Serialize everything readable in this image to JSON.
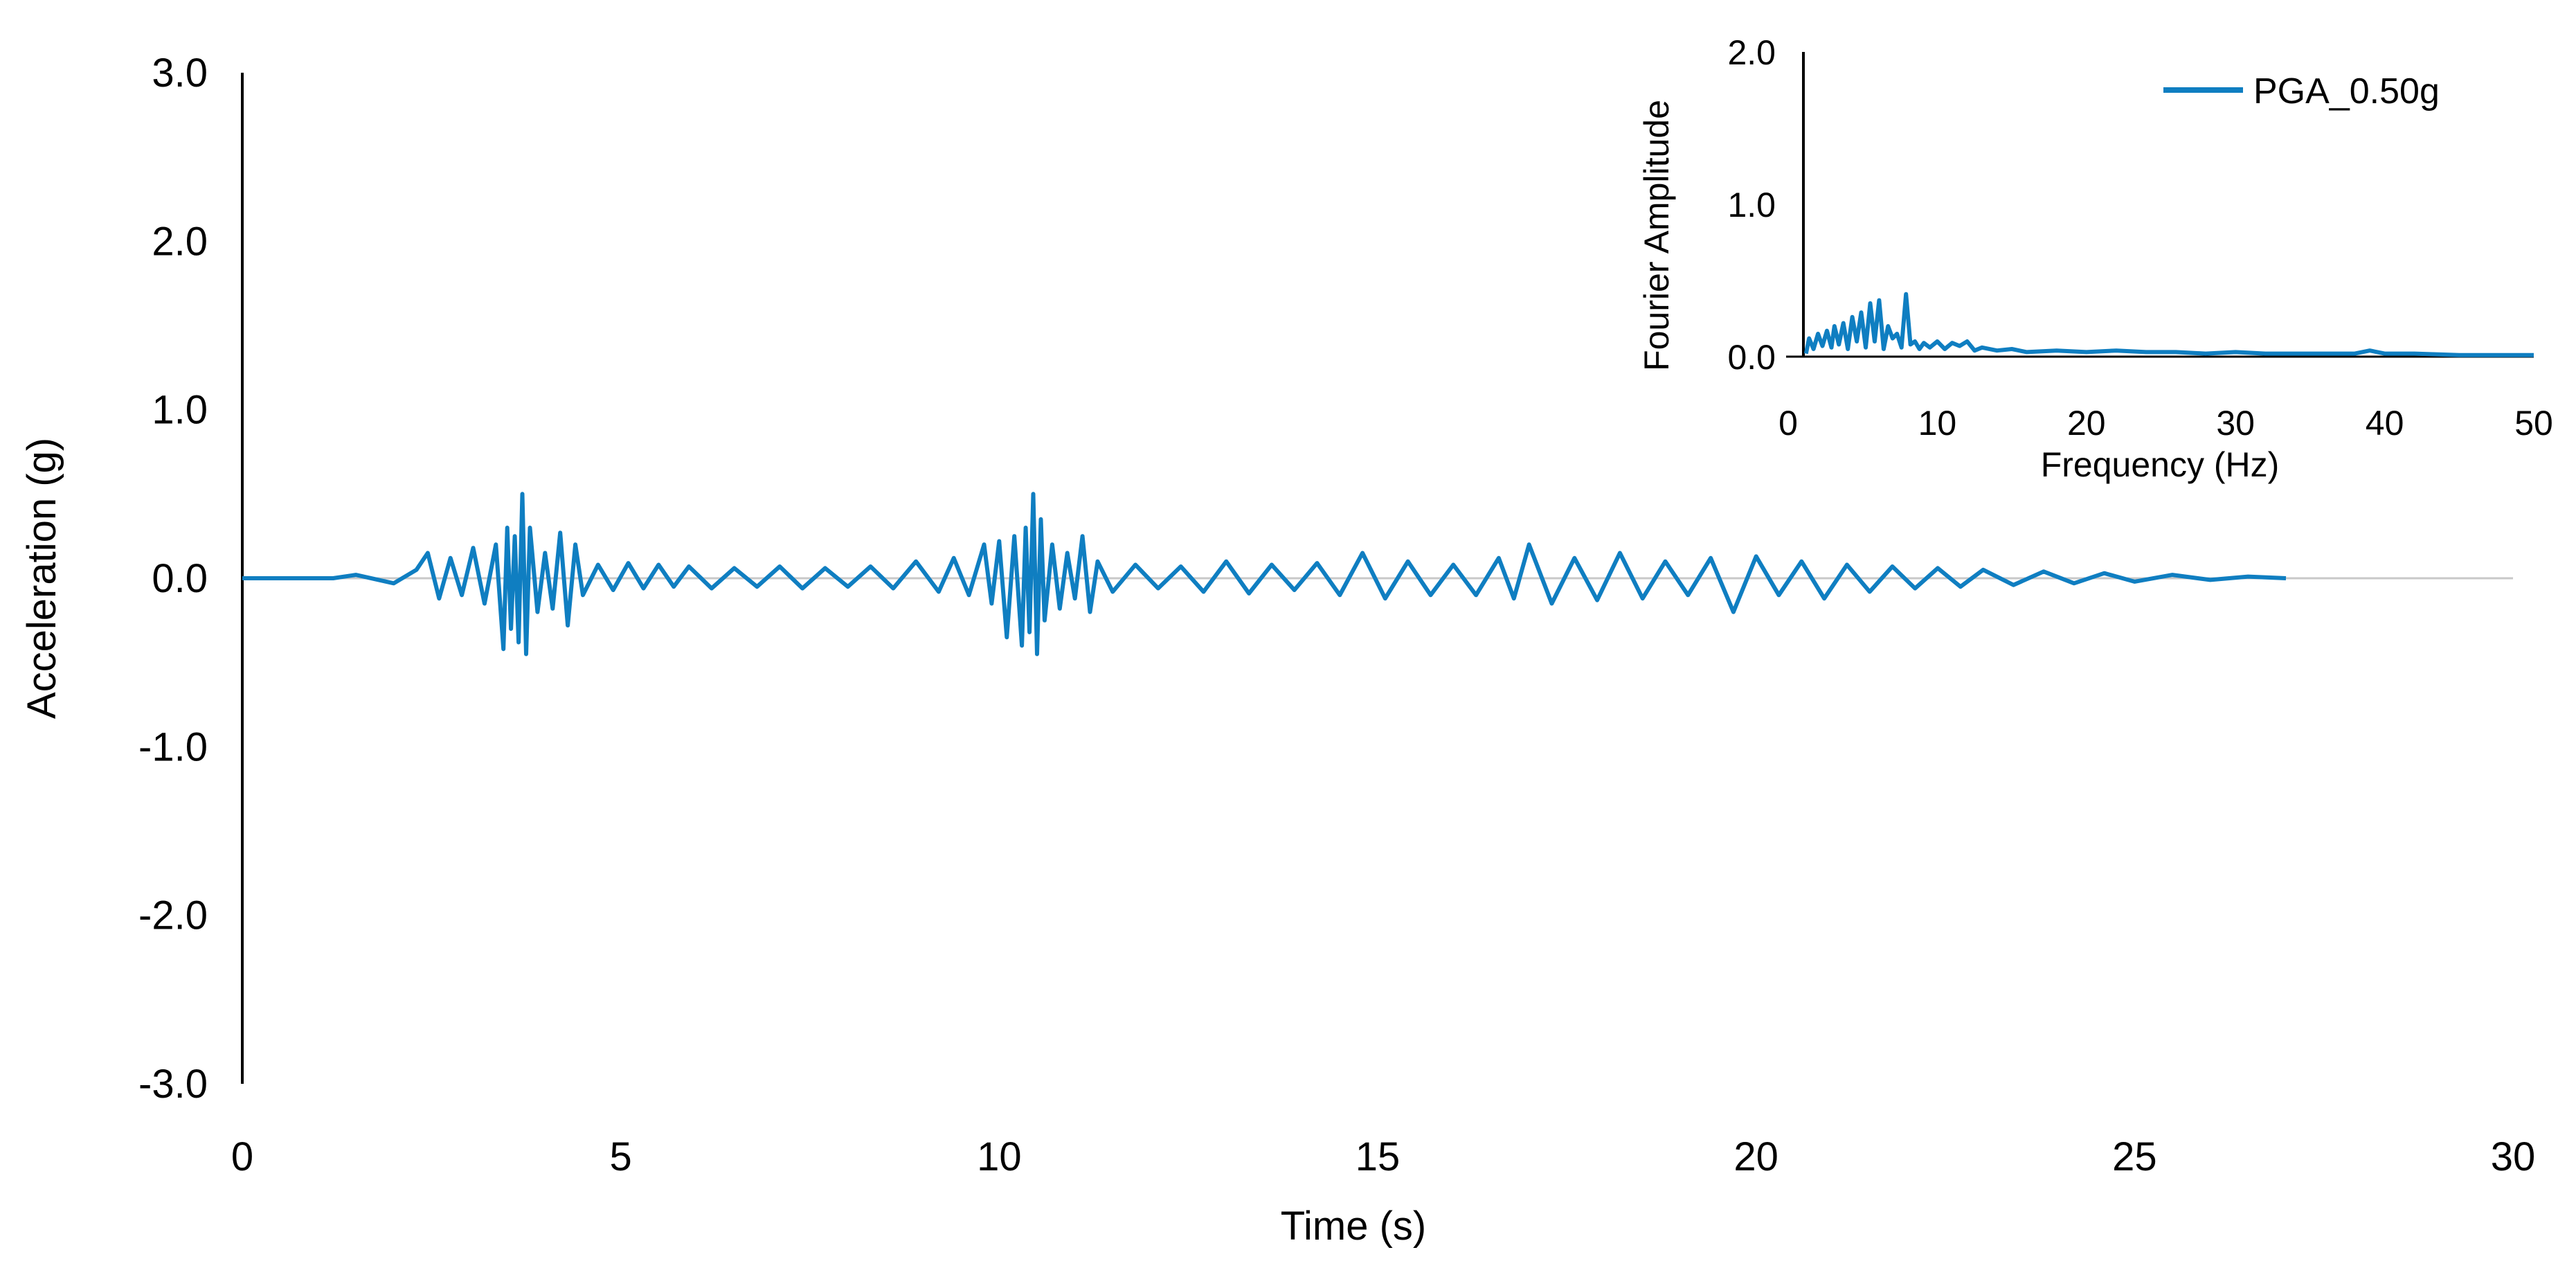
{
  "colors": {
    "series": "#0f7ec1",
    "axis": "#000000",
    "zero_line": "#c8c8c8",
    "background": "#ffffff"
  },
  "chart_data": [
    {
      "type": "line",
      "xlabel": "Time (s)",
      "ylabel": "Acceleration (g)",
      "xlim": [
        0,
        30
      ],
      "ylim": [
        -3.0,
        3.0
      ],
      "x_ticks": [
        "0",
        "5",
        "10",
        "15",
        "20",
        "25",
        "30"
      ],
      "y_ticks": [
        "3.0",
        "2.0",
        "1.0",
        "0.0",
        "-1.0",
        "-2.0",
        "-3.0"
      ],
      "grid": false,
      "series": [
        {
          "x": [
            0,
            1.2,
            1.5,
            2.0,
            2.3,
            2.45,
            2.6,
            2.75,
            2.9,
            3.05,
            3.2,
            3.35,
            3.45,
            3.5,
            3.55,
            3.6,
            3.65,
            3.7,
            3.75,
            3.8,
            3.9,
            4.0,
            4.1,
            4.2,
            4.3,
            4.4,
            4.5,
            4.7,
            4.9,
            5.1,
            5.3,
            5.5,
            5.7,
            5.9,
            6.2,
            6.5,
            6.8,
            7.1,
            7.4,
            7.7,
            8.0,
            8.3,
            8.6,
            8.9,
            9.2,
            9.4,
            9.6,
            9.8,
            9.9,
            10.0,
            10.1,
            10.2,
            10.3,
            10.35,
            10.4,
            10.45,
            10.5,
            10.55,
            10.6,
            10.7,
            10.8,
            10.9,
            11.0,
            11.1,
            11.2,
            11.3,
            11.5,
            11.8,
            12.1,
            12.4,
            12.7,
            13.0,
            13.3,
            13.6,
            13.9,
            14.2,
            14.5,
            14.8,
            15.1,
            15.4,
            15.7,
            16.0,
            16.3,
            16.6,
            16.8,
            17.0,
            17.3,
            17.6,
            17.9,
            18.2,
            18.5,
            18.8,
            19.1,
            19.4,
            19.7,
            20.0,
            20.3,
            20.6,
            20.9,
            21.2,
            21.5,
            21.8,
            22.1,
            22.4,
            22.7,
            23.0,
            23.4,
            23.8,
            24.2,
            24.6,
            25.0,
            25.5,
            26.0,
            26.5,
            27.0
          ],
          "y": [
            0.0,
            0.0,
            0.02,
            -0.03,
            0.05,
            0.15,
            -0.12,
            0.12,
            -0.1,
            0.18,
            -0.15,
            0.2,
            -0.42,
            0.3,
            -0.3,
            0.25,
            -0.38,
            0.5,
            -0.45,
            0.3,
            -0.2,
            0.15,
            -0.18,
            0.27,
            -0.28,
            0.2,
            -0.1,
            0.08,
            -0.07,
            0.09,
            -0.06,
            0.08,
            -0.05,
            0.07,
            -0.06,
            0.06,
            -0.05,
            0.07,
            -0.06,
            0.06,
            -0.05,
            0.07,
            -0.06,
            0.1,
            -0.08,
            0.12,
            -0.1,
            0.2,
            -0.15,
            0.22,
            -0.35,
            0.25,
            -0.4,
            0.3,
            -0.32,
            0.5,
            -0.45,
            0.35,
            -0.25,
            0.2,
            -0.18,
            0.15,
            -0.12,
            0.25,
            -0.2,
            0.1,
            -0.08,
            0.08,
            -0.06,
            0.07,
            -0.08,
            0.1,
            -0.09,
            0.08,
            -0.07,
            0.09,
            -0.1,
            0.15,
            -0.12,
            0.1,
            -0.1,
            0.08,
            -0.1,
            0.12,
            -0.12,
            0.2,
            -0.15,
            0.12,
            -0.13,
            0.15,
            -0.12,
            0.1,
            -0.1,
            0.12,
            -0.2,
            0.13,
            -0.1,
            0.1,
            -0.12,
            0.08,
            -0.08,
            0.07,
            -0.06,
            0.06,
            -0.05,
            0.05,
            -0.04,
            0.04,
            -0.03,
            0.03,
            -0.02,
            0.02,
            -0.01,
            0.01,
            0.0
          ]
        }
      ]
    },
    {
      "type": "line",
      "xlabel": "Frequency (Hz)",
      "ylabel": "Fourier Amplitude",
      "xlim": [
        0,
        50
      ],
      "ylim": [
        0.0,
        2.0
      ],
      "x_ticks": [
        "0",
        "10",
        "20",
        "30",
        "40",
        "50"
      ],
      "y_ticks": [
        "2.0",
        "1.0",
        "0.0"
      ],
      "grid": false,
      "legend": {
        "placement": "top-right"
      },
      "series": [
        {
          "name": "PGA_0.50g",
          "x": [
            1.2,
            1.4,
            1.7,
            2.0,
            2.3,
            2.6,
            2.9,
            3.1,
            3.4,
            3.7,
            4.0,
            4.3,
            4.6,
            4.9,
            5.2,
            5.5,
            5.8,
            6.1,
            6.4,
            6.7,
            7.0,
            7.3,
            7.6,
            7.9,
            8.2,
            8.5,
            8.8,
            9.1,
            9.5,
            10.0,
            10.5,
            11.0,
            11.5,
            12.0,
            12.5,
            13.0,
            14.0,
            15.0,
            16.0,
            18.0,
            20.0,
            22.0,
            24.0,
            26.0,
            28.0,
            30.0,
            32.0,
            34.0,
            36.0,
            38.0,
            39.0,
            40.0,
            42.0,
            45.0,
            48.0,
            50.0
          ],
          "y": [
            0.02,
            0.12,
            0.05,
            0.15,
            0.07,
            0.17,
            0.06,
            0.2,
            0.08,
            0.22,
            0.05,
            0.26,
            0.1,
            0.29,
            0.06,
            0.35,
            0.1,
            0.37,
            0.05,
            0.2,
            0.12,
            0.15,
            0.06,
            0.41,
            0.08,
            0.1,
            0.05,
            0.09,
            0.06,
            0.1,
            0.05,
            0.09,
            0.07,
            0.1,
            0.04,
            0.06,
            0.04,
            0.05,
            0.03,
            0.04,
            0.03,
            0.04,
            0.03,
            0.03,
            0.02,
            0.03,
            0.02,
            0.02,
            0.02,
            0.02,
            0.04,
            0.02,
            0.02,
            0.01,
            0.01,
            0.01
          ]
        }
      ]
    }
  ]
}
